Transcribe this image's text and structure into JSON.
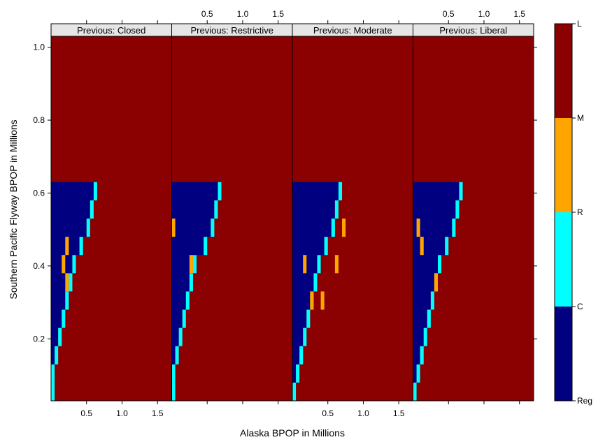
{
  "chart_data": {
    "type": "heatmap",
    "xlabel": "Alaska BPOP in Millions",
    "ylabel": "Southern Pacific Flyway BPOP in Millions",
    "xlim": [
      0.0,
      1.7
    ],
    "ylim": [
      0.03,
      1.03
    ],
    "x_ticks": [
      "0.5",
      "1.0",
      "1.5"
    ],
    "y_ticks": [
      "0.2",
      "0.4",
      "0.6",
      "0.8",
      "1.0"
    ],
    "x_tick_values": [
      0.5,
      1.0,
      1.5
    ],
    "y_tick_values": [
      0.2,
      0.4,
      0.6,
      0.8,
      1.0
    ],
    "cell_width": 0.05,
    "cell_height": 0.05,
    "panels": [
      {
        "strip": "Previous: Closed",
        "steps": [
          {
            "y": 0.03,
            "c_end": 0.0,
            "r_end": 0.05
          },
          {
            "y": 0.08,
            "c_end": 0.0,
            "r_end": 0.05
          },
          {
            "y": 0.13,
            "c_end": 0.05,
            "r_end": 0.1
          },
          {
            "y": 0.18,
            "c_end": 0.1,
            "r_end": 0.15
          },
          {
            "y": 0.23,
            "c_end": 0.15,
            "r_end": 0.2
          },
          {
            "y": 0.28,
            "c_end": 0.2,
            "r_end": 0.25
          },
          {
            "y": 0.33,
            "c_end": 0.25,
            "r_end": 0.3
          },
          {
            "y": 0.38,
            "c_end": 0.3,
            "r_end": 0.35
          },
          {
            "y": 0.43,
            "c_end": 0.4,
            "r_end": 0.45
          },
          {
            "y": 0.48,
            "c_end": 0.5,
            "r_end": 0.55
          },
          {
            "y": 0.53,
            "c_end": 0.55,
            "r_end": 0.6
          },
          {
            "y": 0.58,
            "c_end": 0.6,
            "r_end": 0.65
          }
        ],
        "orange_cells": [
          {
            "x": 0.15,
            "y": 0.38
          },
          {
            "x": 0.2,
            "y": 0.33
          },
          {
            "x": 0.2,
            "y": 0.43
          }
        ]
      },
      {
        "strip": "Previous: Restrictive",
        "steps": [
          {
            "y": 0.03,
            "c_end": 0.0,
            "r_end": 0.05
          },
          {
            "y": 0.08,
            "c_end": 0.0,
            "r_end": 0.05
          },
          {
            "y": 0.13,
            "c_end": 0.05,
            "r_end": 0.1
          },
          {
            "y": 0.18,
            "c_end": 0.1,
            "r_end": 0.15
          },
          {
            "y": 0.23,
            "c_end": 0.15,
            "r_end": 0.2
          },
          {
            "y": 0.28,
            "c_end": 0.2,
            "r_end": 0.25
          },
          {
            "y": 0.33,
            "c_end": 0.25,
            "r_end": 0.3
          },
          {
            "y": 0.38,
            "c_end": 0.3,
            "r_end": 0.35
          },
          {
            "y": 0.43,
            "c_end": 0.45,
            "r_end": 0.5
          },
          {
            "y": 0.48,
            "c_end": 0.55,
            "r_end": 0.6
          },
          {
            "y": 0.53,
            "c_end": 0.6,
            "r_end": 0.65
          },
          {
            "y": 0.58,
            "c_end": 0.65,
            "r_end": 0.7
          }
        ],
        "orange_cells": [
          {
            "x": 0.0,
            "y": 0.48
          },
          {
            "x": 0.25,
            "y": 0.38
          }
        ]
      },
      {
        "strip": "Previous: Moderate",
        "steps": [
          {
            "y": 0.03,
            "c_end": 0.0,
            "r_end": 0.05
          },
          {
            "y": 0.08,
            "c_end": 0.05,
            "r_end": 0.1
          },
          {
            "y": 0.13,
            "c_end": 0.1,
            "r_end": 0.15
          },
          {
            "y": 0.18,
            "c_end": 0.15,
            "r_end": 0.2
          },
          {
            "y": 0.23,
            "c_end": 0.2,
            "r_end": 0.25
          },
          {
            "y": 0.28,
            "c_end": 0.25,
            "r_end": 0.3
          },
          {
            "y": 0.33,
            "c_end": 0.3,
            "r_end": 0.35
          },
          {
            "y": 0.38,
            "c_end": 0.35,
            "r_end": 0.4
          },
          {
            "y": 0.43,
            "c_end": 0.45,
            "r_end": 0.5
          },
          {
            "y": 0.48,
            "c_end": 0.55,
            "r_end": 0.6
          },
          {
            "y": 0.53,
            "c_end": 0.6,
            "r_end": 0.65
          },
          {
            "y": 0.58,
            "c_end": 0.65,
            "r_end": 0.7
          }
        ],
        "orange_cells": [
          {
            "x": 0.15,
            "y": 0.38
          },
          {
            "x": 0.25,
            "y": 0.28
          },
          {
            "x": 0.4,
            "y": 0.28
          },
          {
            "x": 0.6,
            "y": 0.38
          },
          {
            "x": 0.7,
            "y": 0.48
          }
        ]
      },
      {
        "strip": "Previous: Liberal",
        "steps": [
          {
            "y": 0.03,
            "c_end": 0.0,
            "r_end": 0.05
          },
          {
            "y": 0.08,
            "c_end": 0.05,
            "r_end": 0.1
          },
          {
            "y": 0.13,
            "c_end": 0.1,
            "r_end": 0.15
          },
          {
            "y": 0.18,
            "c_end": 0.15,
            "r_end": 0.2
          },
          {
            "y": 0.23,
            "c_end": 0.2,
            "r_end": 0.25
          },
          {
            "y": 0.28,
            "c_end": 0.25,
            "r_end": 0.3
          },
          {
            "y": 0.33,
            "c_end": 0.3,
            "r_end": 0.35
          },
          {
            "y": 0.38,
            "c_end": 0.35,
            "r_end": 0.4
          },
          {
            "y": 0.43,
            "c_end": 0.45,
            "r_end": 0.5
          },
          {
            "y": 0.48,
            "c_end": 0.55,
            "r_end": 0.6
          },
          {
            "y": 0.53,
            "c_end": 0.6,
            "r_end": 0.65
          },
          {
            "y": 0.58,
            "c_end": 0.65,
            "r_end": 0.7
          }
        ],
        "orange_cells": [
          {
            "x": 0.05,
            "y": 0.48
          },
          {
            "x": 0.1,
            "y": 0.43
          },
          {
            "x": 0.3,
            "y": 0.33
          }
        ]
      }
    ],
    "colorkey": {
      "labels": [
        "Reg",
        "C",
        "R",
        "M",
        "L"
      ],
      "label_values": [
        0.0,
        1.0,
        2.0,
        3.0,
        4.0
      ],
      "boundaries": [
        0.0,
        1.0,
        2.0,
        3.0,
        4.0
      ],
      "range": [
        0.0,
        4.0
      ],
      "bands": [
        {
          "from": 0.0,
          "to": 1.0,
          "color": "#000080",
          "category": "C"
        },
        {
          "from": 1.0,
          "to": 2.0,
          "color": "#00ffff",
          "category": "R"
        },
        {
          "from": 2.0,
          "to": 3.0,
          "color": "#ffa500",
          "category": "M"
        },
        {
          "from": 3.0,
          "to": 4.0,
          "color": "#8b0000",
          "category": "L"
        }
      ]
    },
    "colors": {
      "C": "#000080",
      "R": "#00ffff",
      "M": "#ffa500",
      "L": "#8b0000",
      "strip": "#e6e6e6"
    }
  }
}
